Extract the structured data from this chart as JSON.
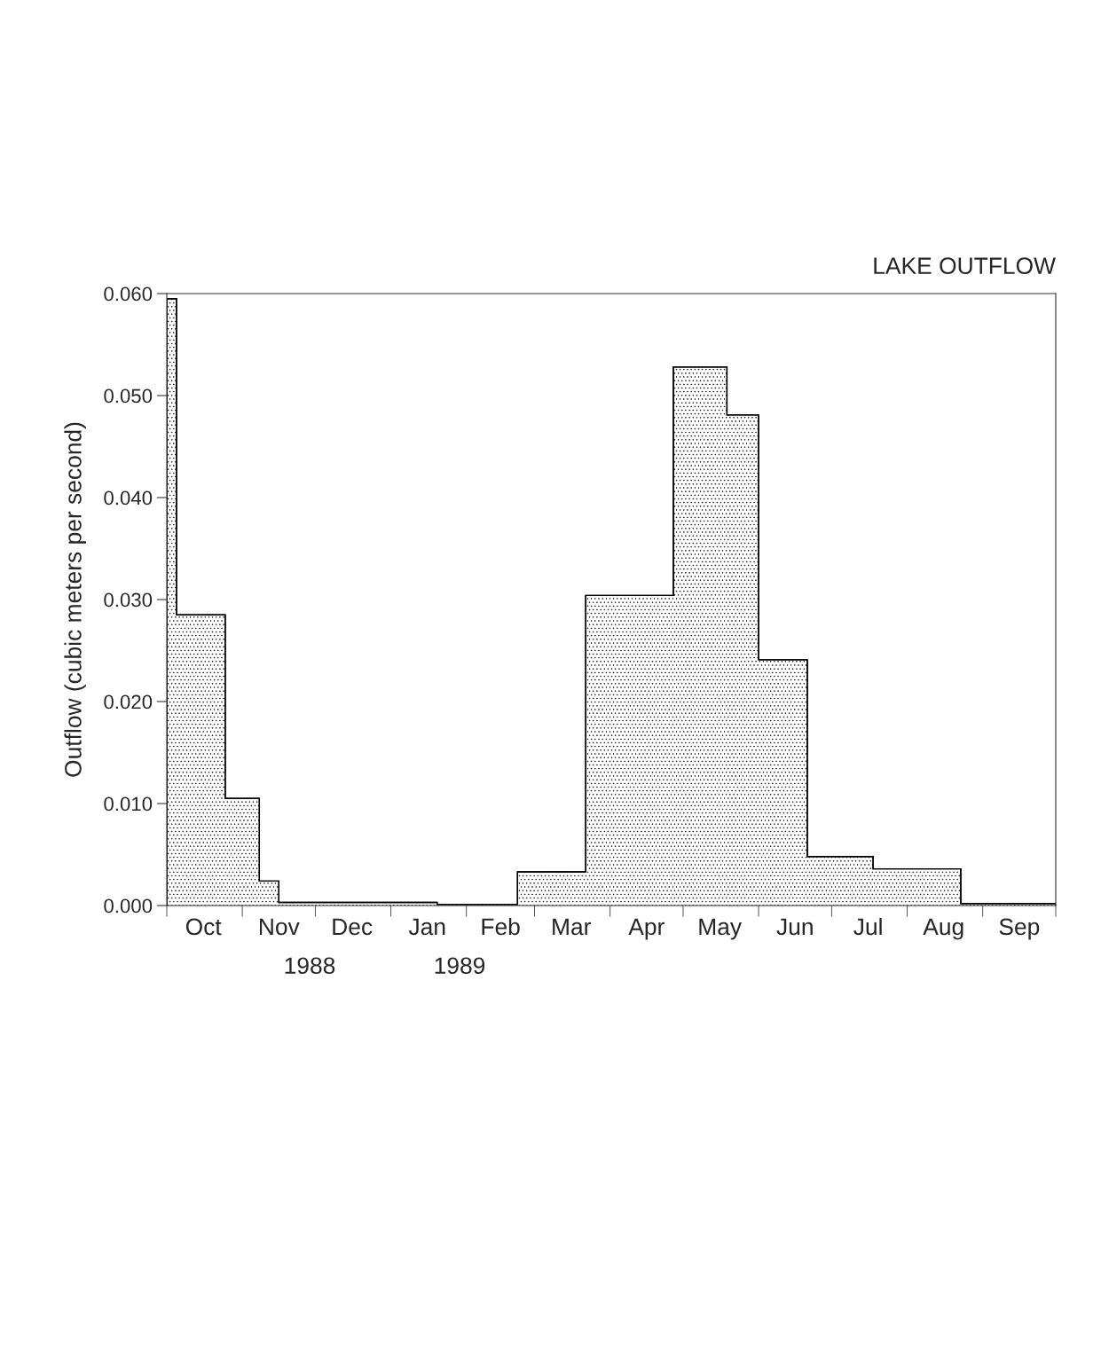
{
  "chart_data": {
    "type": "histogram",
    "title": "LAKE OUTFLOW",
    "ylabel": "Outflow (cubic meters per second)",
    "bins": [
      "1988-10-01",
      "1988-10-05",
      "1988-10-25",
      "1988-11-08",
      "1988-11-16",
      "1989-01-20",
      "1989-02-22",
      "1989-03-22",
      "1989-04-27",
      "1989-05-19",
      "1989-06-01",
      "1989-06-21",
      "1989-07-18",
      "1989-08-23",
      "1989-10-01"
    ],
    "values": [
      0.0595,
      0.0285,
      0.0105,
      0.0024,
      0.0003,
      0.0001,
      0.0033,
      0.0304,
      0.0528,
      0.0481,
      0.0241,
      0.0048,
      0.0036,
      0.0002
    ],
    "color": "#000000",
    "xlim": [
      "1988-10-01",
      "1989-10-01"
    ],
    "xticks": [
      {
        "value": "1988-10-01",
        "label": null
      },
      {
        "value": "1988-10-16",
        "label": "Oct"
      },
      {
        "value": "1988-11-01",
        "label": null
      },
      {
        "value": "1988-11-16",
        "label": "Nov"
      },
      {
        "value": "1988-12-01",
        "label": null
      },
      {
        "value": "1988-12-16",
        "label": "Dec"
      },
      {
        "value": "1989-01-01",
        "label": null
      },
      {
        "value": "1989-01-16",
        "label": "Jan"
      },
      {
        "value": "1989-02-01",
        "label": null
      },
      {
        "value": "1989-02-15",
        "label": "Feb"
      },
      {
        "value": "1989-03-01",
        "label": null
      },
      {
        "value": "1989-03-16",
        "label": "Mar"
      },
      {
        "value": "1989-04-01",
        "label": null
      },
      {
        "value": "1989-04-16",
        "label": "Apr"
      },
      {
        "value": "1989-05-01",
        "label": null
      },
      {
        "value": "1989-05-16",
        "label": "May"
      },
      {
        "value": "1989-06-01",
        "label": null
      },
      {
        "value": "1989-06-16",
        "label": "Jun"
      },
      {
        "value": "1989-07-01",
        "label": null
      },
      {
        "value": "1989-07-16",
        "label": "Jul"
      },
      {
        "value": "1989-08-01",
        "label": null
      },
      {
        "value": "1989-08-16",
        "label": "Aug"
      },
      {
        "value": "1989-09-01",
        "label": null
      },
      {
        "value": "1989-09-16",
        "label": "Sep"
      },
      {
        "value": "1989-10-01",
        "label": null
      }
    ],
    "ylim": [
      0,
      0.06
    ],
    "yticks": [
      {
        "value": 0,
        "label": "0.000"
      },
      {
        "value": 0.01,
        "label": "0.010"
      },
      {
        "value": 0.02,
        "label": "0.020"
      },
      {
        "value": 0.03,
        "label": "0.030"
      },
      {
        "value": 0.04,
        "label": "0.040"
      },
      {
        "value": 0.05,
        "label": "0.050"
      },
      {
        "value": 0.06,
        "label": "0.060"
      }
    ],
    "annotations": [
      "1988",
      "1989"
    ],
    "grid": false
  }
}
